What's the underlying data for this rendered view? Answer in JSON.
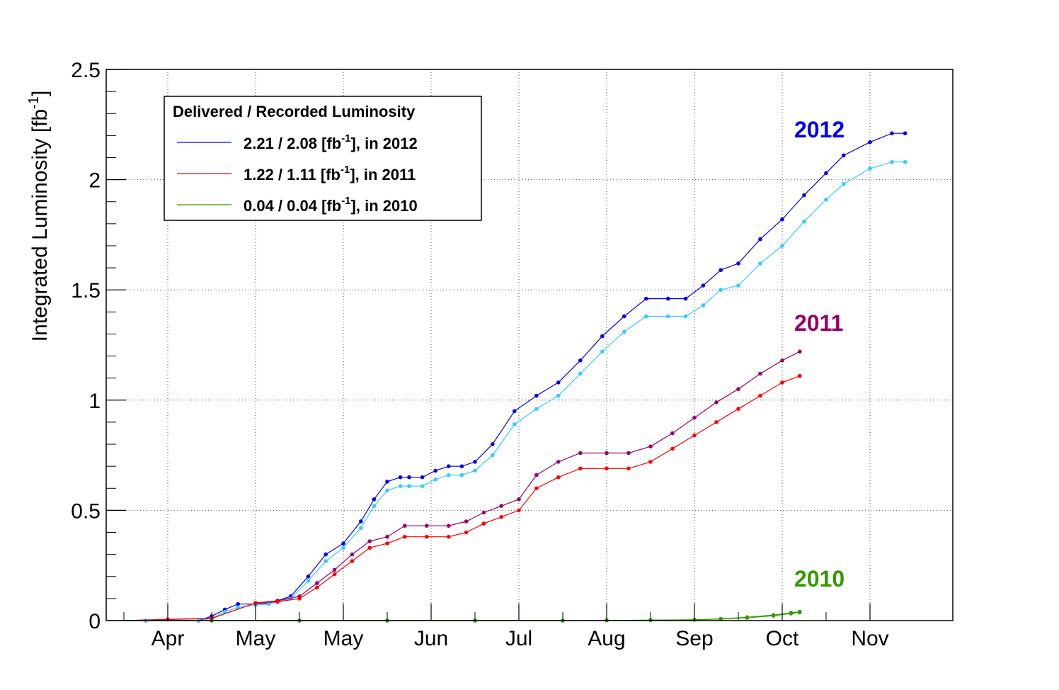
{
  "chart_data": {
    "type": "line",
    "ylabel": "Integrated Luminosity [fb-1]",
    "ylabel_parts": {
      "main": "Integrated Luminosity [fb",
      "sup": "-1",
      "end": "]"
    },
    "ylim": [
      0,
      2.5
    ],
    "yticks": [
      "0",
      "0.5",
      "1",
      "1.5",
      "2",
      "2.5"
    ],
    "xlim": [
      0,
      8.9
    ],
    "xticks": [
      {
        "x": 0.5,
        "label": "Apr"
      },
      {
        "x": 1.5,
        "label": "May"
      },
      {
        "x": 2.5,
        "label": "May"
      },
      {
        "x": 3.5,
        "label": "Jun"
      },
      {
        "x": 4.5,
        "label": "Jul"
      },
      {
        "x": 5.5,
        "label": "Aug"
      },
      {
        "x": 6.5,
        "label": "Sep"
      },
      {
        "x": 7.5,
        "label": "Oct"
      },
      {
        "x": 8.5,
        "label": "Nov"
      }
    ],
    "grid": true,
    "legend": {
      "title": "Delivered / Recorded Luminosity",
      "placement": "top-left",
      "entries": [
        {
          "pre": "2.21 / 2.08 [fb",
          "sup": "-1",
          "post": "], in 2012",
          "color": "#0000ff"
        },
        {
          "pre": "1.22 / 1.11 [fb",
          "sup": "-1",
          "post": "], in 2011",
          "color": "#ff0000"
        },
        {
          "pre": "0.04 / 0.04 [fb",
          "sup": "-1",
          "post": "], in 2010",
          "color": "#339900"
        }
      ]
    },
    "annotations": [
      {
        "text": "2012",
        "color": "#0000ee"
      },
      {
        "text": "2011",
        "color": "#990066"
      },
      {
        "text": "2010",
        "color": "#339900"
      }
    ],
    "series": [
      {
        "name": "2012 delivered",
        "color": "#0000ee",
        "x": [
          0.0,
          0.25,
          0.85,
          1.0,
          1.15,
          1.3,
          1.5,
          1.65,
          1.75,
          1.9,
          2.1,
          2.3,
          2.5,
          2.7,
          2.85,
          3.0,
          3.15,
          3.25,
          3.4,
          3.55,
          3.7,
          3.85,
          4.0,
          4.2,
          4.45,
          4.7,
          4.95,
          5.2,
          5.45,
          5.7,
          5.95,
          6.2,
          6.4,
          6.6,
          6.8,
          7.0,
          7.25,
          7.5,
          7.75,
          8.0,
          8.2,
          8.5,
          8.75,
          8.9
        ],
        "y": [
          0.0,
          0.0,
          0.0,
          0.02,
          0.05,
          0.075,
          0.075,
          0.08,
          0.09,
          0.11,
          0.2,
          0.3,
          0.35,
          0.45,
          0.55,
          0.63,
          0.65,
          0.65,
          0.65,
          0.68,
          0.7,
          0.7,
          0.72,
          0.8,
          0.95,
          1.02,
          1.08,
          1.18,
          1.29,
          1.38,
          1.46,
          1.46,
          1.46,
          1.52,
          1.59,
          1.62,
          1.73,
          1.82,
          1.93,
          2.03,
          2.11,
          2.17,
          2.21,
          2.21
        ]
      },
      {
        "name": "2012 recorded",
        "color": "#33ccff",
        "x": [
          0.0,
          0.25,
          0.85,
          1.0,
          1.15,
          1.3,
          1.5,
          1.65,
          1.75,
          1.9,
          2.1,
          2.3,
          2.5,
          2.7,
          2.85,
          3.0,
          3.15,
          3.25,
          3.4,
          3.55,
          3.7,
          3.85,
          4.0,
          4.2,
          4.45,
          4.7,
          4.95,
          5.2,
          5.45,
          5.7,
          5.95,
          6.2,
          6.4,
          6.6,
          6.8,
          7.0,
          7.25,
          7.5,
          7.75,
          8.0,
          8.2,
          8.5,
          8.75,
          8.9
        ],
        "y": [
          0.0,
          0.0,
          0.0,
          0.01,
          0.04,
          0.06,
          0.07,
          0.075,
          0.085,
          0.1,
          0.18,
          0.27,
          0.33,
          0.42,
          0.52,
          0.59,
          0.61,
          0.61,
          0.61,
          0.64,
          0.66,
          0.66,
          0.68,
          0.75,
          0.89,
          0.96,
          1.02,
          1.12,
          1.22,
          1.31,
          1.38,
          1.38,
          1.38,
          1.43,
          1.5,
          1.52,
          1.62,
          1.7,
          1.81,
          1.91,
          1.98,
          2.05,
          2.08,
          2.08
        ]
      },
      {
        "name": "2011 delivered",
        "color": "#990066",
        "x": [
          0.0,
          0.5,
          1.0,
          1.5,
          1.75,
          2.0,
          2.2,
          2.4,
          2.6,
          2.8,
          3.0,
          3.2,
          3.45,
          3.7,
          3.9,
          4.1,
          4.3,
          4.5,
          4.7,
          4.95,
          5.2,
          5.5,
          5.75,
          6.0,
          6.25,
          6.5,
          6.75,
          7.0,
          7.25,
          7.5,
          7.7
        ],
        "y": [
          0.0,
          0.005,
          0.01,
          0.08,
          0.09,
          0.11,
          0.17,
          0.23,
          0.3,
          0.36,
          0.38,
          0.43,
          0.43,
          0.43,
          0.45,
          0.49,
          0.52,
          0.55,
          0.66,
          0.72,
          0.76,
          0.76,
          0.76,
          0.79,
          0.85,
          0.92,
          0.99,
          1.05,
          1.12,
          1.18,
          1.22
        ]
      },
      {
        "name": "2011 recorded",
        "color": "#ff0000",
        "x": [
          0.0,
          0.5,
          1.0,
          1.5,
          1.75,
          2.0,
          2.2,
          2.4,
          2.6,
          2.8,
          3.0,
          3.2,
          3.45,
          3.7,
          3.9,
          4.1,
          4.3,
          4.5,
          4.7,
          4.95,
          5.2,
          5.5,
          5.75,
          6.0,
          6.25,
          6.5,
          6.75,
          7.0,
          7.25,
          7.5,
          7.7
        ],
        "y": [
          0.0,
          0.005,
          0.01,
          0.08,
          0.085,
          0.1,
          0.15,
          0.21,
          0.27,
          0.33,
          0.35,
          0.38,
          0.38,
          0.38,
          0.4,
          0.44,
          0.47,
          0.5,
          0.6,
          0.65,
          0.69,
          0.69,
          0.69,
          0.72,
          0.78,
          0.84,
          0.9,
          0.96,
          1.02,
          1.08,
          1.11
        ]
      },
      {
        "name": "2010 delivered",
        "color": "#339900",
        "x": [
          0.0,
          1.0,
          2.0,
          3.0,
          4.0,
          5.0,
          5.5,
          6.0,
          6.5,
          6.8,
          7.1,
          7.4,
          7.6,
          7.7
        ],
        "y": [
          0.0,
          0.0,
          0.0,
          0.0,
          0.0,
          0.0,
          0.001,
          0.002,
          0.004,
          0.008,
          0.015,
          0.025,
          0.035,
          0.04
        ]
      },
      {
        "name": "2010 recorded",
        "color": "#339900",
        "x": [
          0.0,
          1.0,
          2.0,
          3.0,
          4.0,
          5.0,
          5.5,
          6.0,
          6.5,
          6.8,
          7.1,
          7.4,
          7.6,
          7.7
        ],
        "y": [
          0.0,
          0.0,
          0.0,
          0.0,
          0.0,
          0.0,
          0.001,
          0.002,
          0.004,
          0.007,
          0.013,
          0.022,
          0.032,
          0.037
        ]
      }
    ]
  }
}
